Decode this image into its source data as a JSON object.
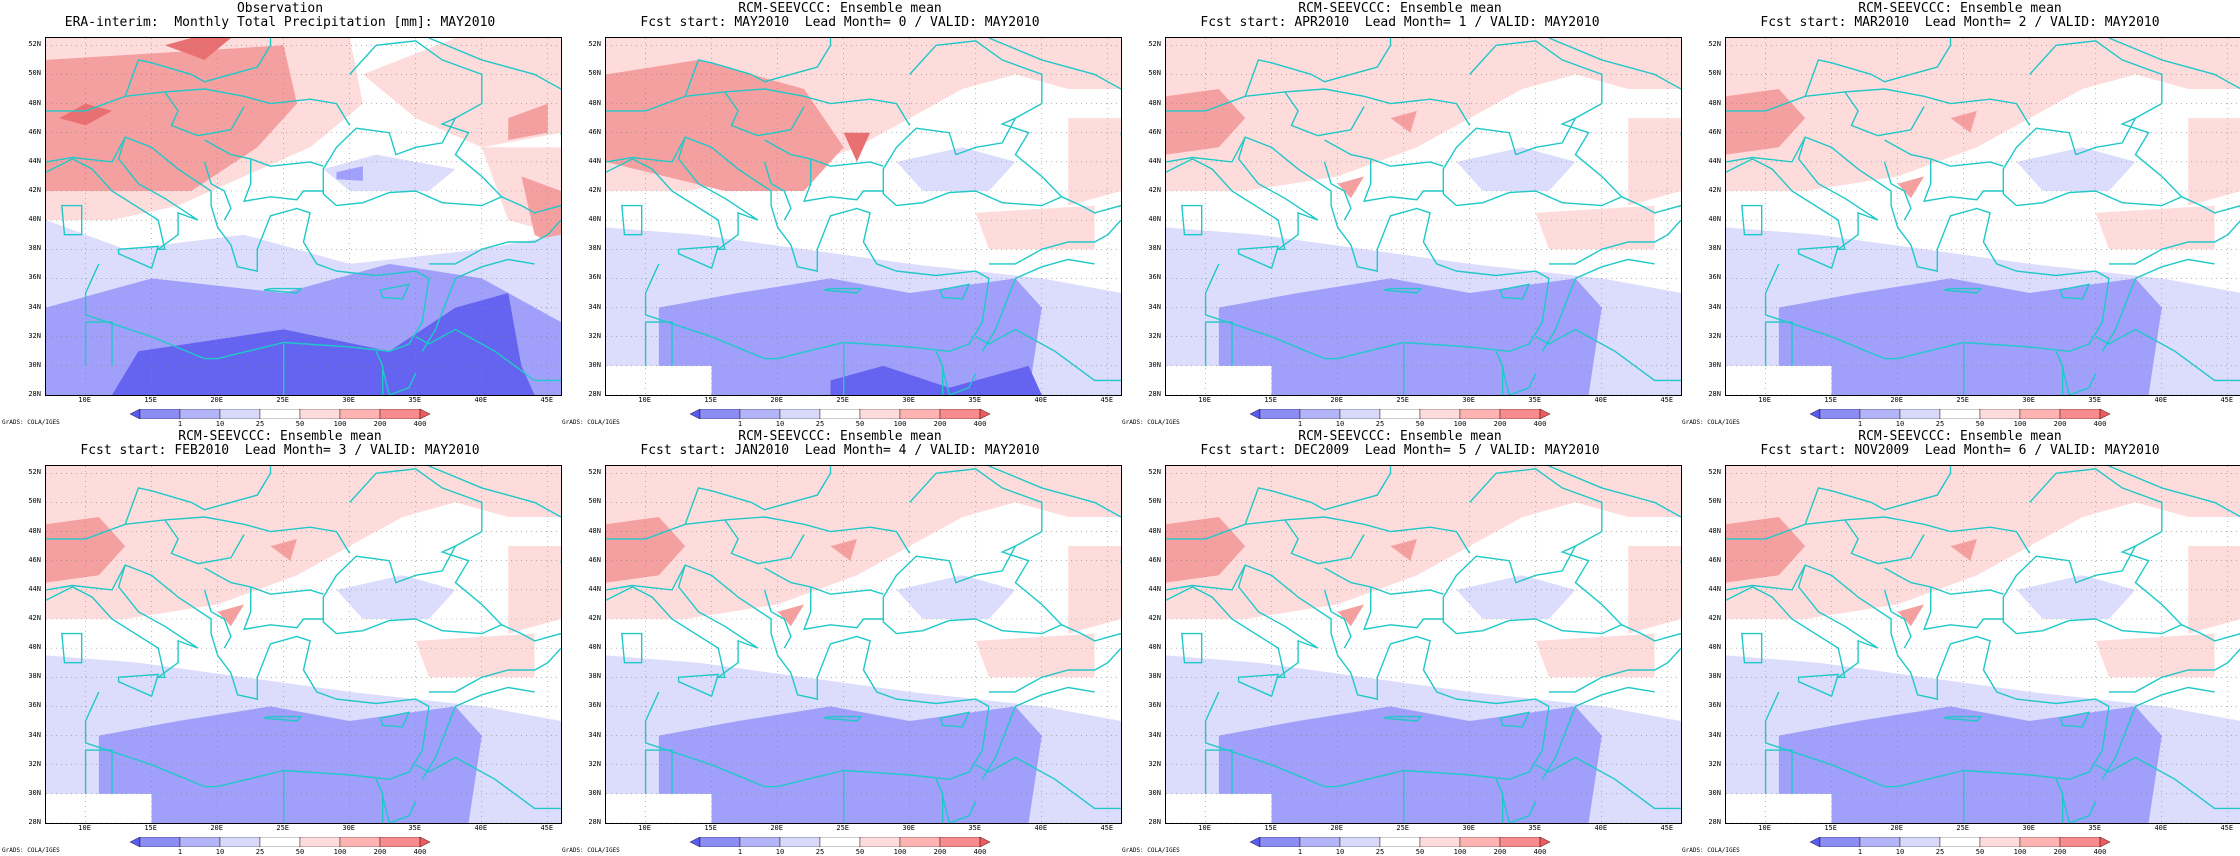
{
  "panels": [
    {
      "title1": "Observation",
      "title2": "ERA-interim:  Monthly Total Precipitation [mm]: MAY2010",
      "variant": "obs"
    },
    {
      "title1": "RCM-SEEVCCC: Ensemble mean",
      "title2": "Fcst start: MAY2010  Lead Month= 0 / VALID: MAY2010",
      "variant": "lead0"
    },
    {
      "title1": "RCM-SEEVCCC: Ensemble mean",
      "title2": "Fcst start: APR2010  Lead Month= 1 / VALID: MAY2010",
      "variant": "lead"
    },
    {
      "title1": "RCM-SEEVCCC: Ensemble mean",
      "title2": "Fcst start: MAR2010  Lead Month= 2 / VALID: MAY2010",
      "variant": "lead"
    },
    {
      "title1": "RCM-SEEVCCC: Ensemble mean",
      "title2": "Fcst start: FEB2010  Lead Month= 3 / VALID: MAY2010",
      "variant": "lead"
    },
    {
      "title1": "RCM-SEEVCCC: Ensemble mean",
      "title2": "Fcst start: JAN2010  Lead Month= 4 / VALID: MAY2010",
      "variant": "lead"
    },
    {
      "title1": "RCM-SEEVCCC: Ensemble mean",
      "title2": "Fcst start: DEC2009  Lead Month= 5 / VALID: MAY2010",
      "variant": "lead"
    },
    {
      "title1": "RCM-SEEVCCC: Ensemble mean",
      "title2": "Fcst start: NOV2009  Lead Month= 6 / VALID: MAY2010",
      "variant": "lead"
    }
  ],
  "map": {
    "lat_labels": [
      "52N",
      "50N",
      "48N",
      "46N",
      "44N",
      "42N",
      "40N",
      "38N",
      "36N",
      "34N",
      "32N",
      "30N",
      "28N"
    ],
    "lon_labels": [
      "10E",
      "15E",
      "20E",
      "25E",
      "30E",
      "35E",
      "40E",
      "45E"
    ],
    "lon_range": [
      7,
      46
    ],
    "lat_range": [
      28,
      52.5
    ],
    "credit": "GrADS: COLA/IGES",
    "coastline_color": "#20c8c8"
  },
  "colorbar": {
    "labels": [
      "1",
      "10",
      "25",
      "50",
      "100",
      "200",
      "400"
    ],
    "colors": [
      "#5a5af0",
      "#8c8cf5",
      "#b4b4f8",
      "#d8d8fb",
      "#ffffff",
      "#ffdcdc",
      "#ffb4b4",
      "#f88c8c",
      "#f05a5a"
    ]
  },
  "colors": {
    "blue_dark": "#6464f0",
    "blue_mid": "#a0a0fa",
    "blue_light": "#dcdcfc",
    "red_light": "#ffdcdc",
    "red_mid": "#f5a0a0",
    "red_dark": "#e87070"
  }
}
